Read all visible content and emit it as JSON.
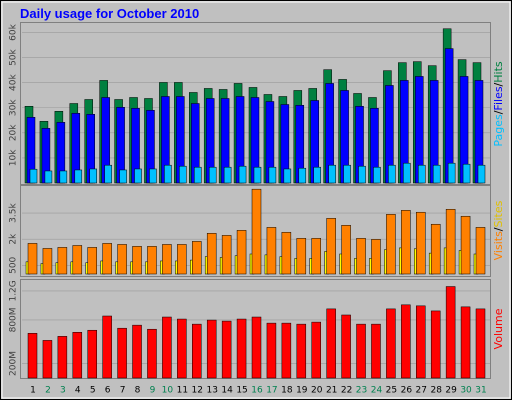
{
  "title": "Daily usage for October 2010",
  "legend_separator": "/",
  "weekend_categories": [
    "2",
    "3",
    "9",
    "10",
    "16",
    "17",
    "23",
    "24",
    "30",
    "31"
  ],
  "weekend_label_color": "#00804f",
  "chart_data": [
    {
      "type": "bar",
      "ylim": [
        0,
        63000
      ],
      "yticks": [
        {
          "value": 10000,
          "label": "10k"
        },
        {
          "value": 20000,
          "label": "20k"
        },
        {
          "value": 30000,
          "label": "30k"
        },
        {
          "value": 40000,
          "label": "40k"
        },
        {
          "value": 50000,
          "label": "50k"
        },
        {
          "value": 60000,
          "label": "60k"
        }
      ],
      "series": [
        {
          "name": "Pages",
          "color": "#00c0ff",
          "values": [
            5500,
            4800,
            4800,
            5200,
            5600,
            7100,
            5200,
            5600,
            5600,
            7100,
            6700,
            6300,
            6300,
            6300,
            6700,
            6300,
            6300,
            5600,
            5900,
            6300,
            7100,
            7100,
            6700,
            6300,
            7100,
            7900,
            7100,
            7100,
            7900,
            7500,
            7100
          ]
        },
        {
          "name": "Files",
          "color": "#0000ff",
          "values": [
            26200,
            21800,
            24200,
            27800,
            27400,
            34100,
            30200,
            29800,
            29000,
            34500,
            34500,
            31700,
            33700,
            33700,
            34500,
            34100,
            32500,
            31300,
            31000,
            32900,
            39700,
            36900,
            30600,
            29800,
            38900,
            40900,
            42500,
            40900,
            53600,
            42500,
            40900
          ]
        },
        {
          "name": "Hits",
          "color": "#008040",
          "values": [
            30600,
            24600,
            28600,
            31700,
            33300,
            40900,
            33300,
            34100,
            33700,
            40100,
            40100,
            36100,
            37700,
            37300,
            39700,
            38100,
            35300,
            34500,
            36900,
            37700,
            45200,
            41300,
            35700,
            34100,
            44800,
            48000,
            48400,
            46800,
            61500,
            49200,
            48000
          ]
        }
      ]
    },
    {
      "type": "bar",
      "ylim": [
        0,
        5000
      ],
      "yticks": [
        500,
        {
          "value": 2000,
          "label": "2k"
        },
        {
          "value": 3500,
          "label": "3.5k"
        }
      ],
      "series": [
        {
          "name": "Visits",
          "color": "#ff8000",
          "values": [
            1760,
            1470,
            1530,
            1640,
            1530,
            1760,
            1700,
            1590,
            1590,
            1700,
            1700,
            1875,
            2340,
            2220,
            2510,
            4875,
            2680,
            2400,
            2050,
            2050,
            3200,
            2800,
            2050,
            1990,
            3430,
            3660,
            3550,
            2860,
            3720,
            3320,
            2680
          ]
        },
        {
          "name": "Sites",
          "color": "#ffff00",
          "values": [
            700,
            600,
            650,
            700,
            650,
            750,
            700,
            700,
            700,
            750,
            750,
            800,
            1000,
            950,
            1050,
            1150,
            1100,
            1000,
            900,
            900,
            1300,
            1150,
            900,
            900,
            1400,
            1500,
            1450,
            1200,
            1500,
            1350,
            1150
          ]
        }
      ]
    },
    {
      "type": "bar",
      "ylim": [
        0,
        1350
      ],
      "yticks": [
        {
          "value": 200,
          "label": "200M"
        },
        {
          "value": 800,
          "label": "800M"
        },
        {
          "value": 1200,
          "label": "1.2G"
        }
      ],
      "categories": [
        "1",
        "2",
        "3",
        "4",
        "5",
        "6",
        "7",
        "8",
        "9",
        "10",
        "11",
        "12",
        "13",
        "14",
        "15",
        "16",
        "17",
        "18",
        "19",
        "20",
        "21",
        "22",
        "23",
        "24",
        "25",
        "26",
        "27",
        "28",
        "29",
        "30",
        "31"
      ],
      "series": [
        {
          "name": "Volume",
          "color": "#ff0000",
          "values": [
            616,
            518,
            574,
            630,
            658,
            854,
            686,
            728,
            672,
            840,
            812,
            742,
            798,
            784,
            812,
            840,
            756,
            756,
            742,
            770,
            952,
            868,
            742,
            742,
            952,
            1008,
            994,
            924,
            1260,
            980,
            952
          ]
        }
      ]
    }
  ]
}
